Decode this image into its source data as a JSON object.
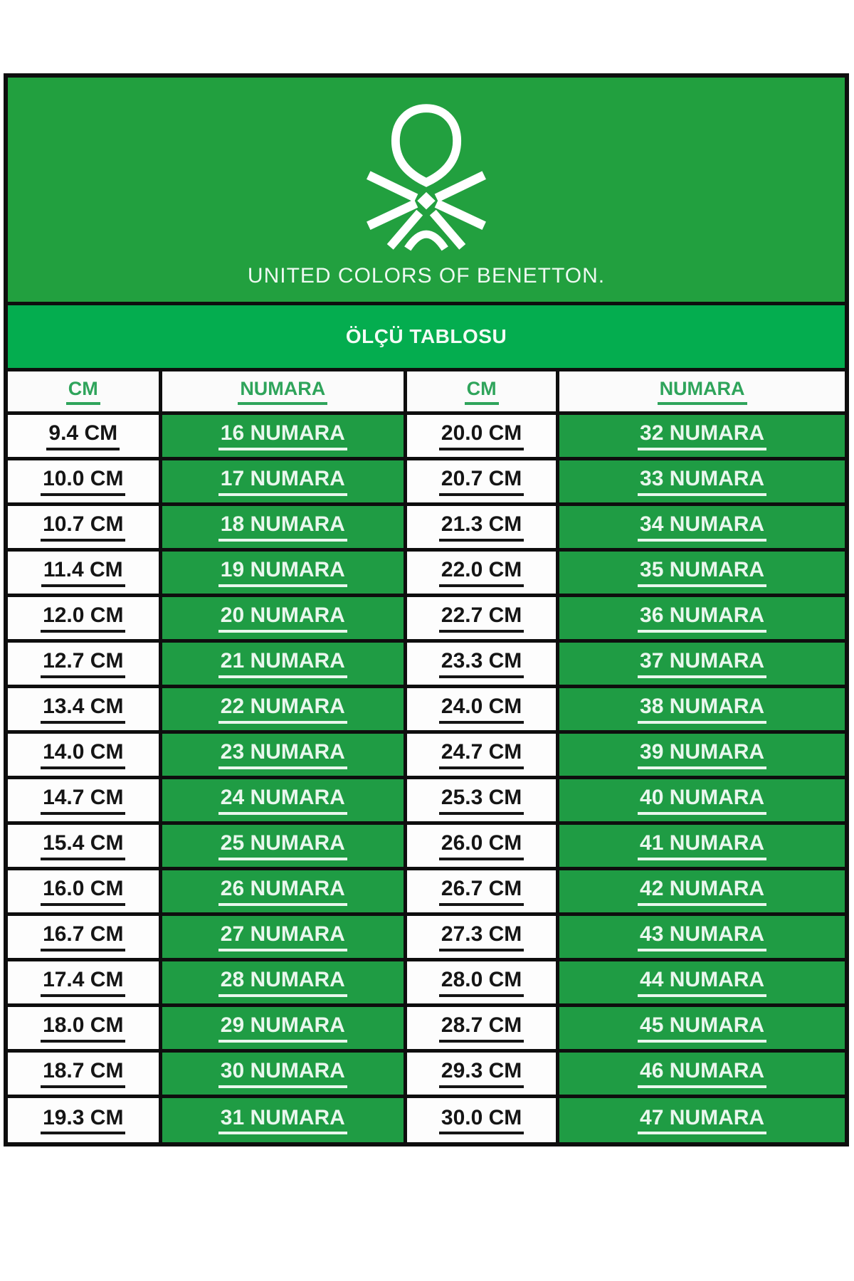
{
  "brand": {
    "logo_icon": "benetton-knot-logo",
    "wordmark": "UNITED COLORS OF BENETTON."
  },
  "title_bar": {
    "title": "ÖLÇÜ TABLOSU"
  },
  "table": {
    "headers": [
      "CM",
      "NUMARA",
      "CM",
      "NUMARA"
    ],
    "rows": [
      [
        "9.4 CM",
        "16 NUMARA",
        "20.0 CM",
        "32 NUMARA"
      ],
      [
        "10.0 CM",
        "17 NUMARA",
        "20.7 CM",
        "33 NUMARA"
      ],
      [
        "10.7 CM",
        "18 NUMARA",
        "21.3 CM",
        "34 NUMARA"
      ],
      [
        "11.4 CM",
        "19 NUMARA",
        "22.0 CM",
        "35 NUMARA"
      ],
      [
        "12.0 CM",
        "20 NUMARA",
        "22.7 CM",
        "36 NUMARA"
      ],
      [
        "12.7 CM",
        "21 NUMARA",
        "23.3 CM",
        "37 NUMARA"
      ],
      [
        "13.4 CM",
        "22 NUMARA",
        "24.0 CM",
        "38 NUMARA"
      ],
      [
        "14.0 CM",
        "23 NUMARA",
        "24.7 CM",
        "39 NUMARA"
      ],
      [
        "14.7 CM",
        "24 NUMARA",
        "25.3 CM",
        "40 NUMARA"
      ],
      [
        "15.4 CM",
        "25 NUMARA",
        "26.0 CM",
        "41 NUMARA"
      ],
      [
        "16.0 CM",
        "26 NUMARA",
        "26.7 CM",
        "42 NUMARA"
      ],
      [
        "16.7 CM",
        "27 NUMARA",
        "27.3 CM",
        "43 NUMARA"
      ],
      [
        "17.4 CM",
        "28 NUMARA",
        "28.0 CM",
        "44 NUMARA"
      ],
      [
        "18.0 CM",
        "29 NUMARA",
        "28.7 CM",
        "45 NUMARA"
      ],
      [
        "18.7 CM",
        "30 NUMARA",
        "29.3 CM",
        "46 NUMARA"
      ],
      [
        "19.3 CM",
        "31 NUMARA",
        "30.0 CM",
        "47 NUMARA"
      ]
    ]
  },
  "chart_data": {
    "type": "table",
    "title": "ÖLÇÜ TABLOSU",
    "columns": [
      "CM",
      "NUMARA",
      "CM",
      "NUMARA"
    ],
    "cm_values": [
      9.4,
      10.0,
      10.7,
      11.4,
      12.0,
      12.7,
      13.4,
      14.0,
      14.7,
      15.4,
      16.0,
      16.7,
      17.4,
      18.0,
      18.7,
      19.3,
      20.0,
      20.7,
      21.3,
      22.0,
      22.7,
      23.3,
      24.0,
      24.7,
      25.3,
      26.0,
      26.7,
      27.3,
      28.0,
      28.7,
      29.3,
      30.0
    ],
    "numara_values": [
      16,
      17,
      18,
      19,
      20,
      21,
      22,
      23,
      24,
      25,
      26,
      27,
      28,
      29,
      30,
      31,
      32,
      33,
      34,
      35,
      36,
      37,
      38,
      39,
      40,
      41,
      42,
      43,
      44,
      45,
      46,
      47
    ]
  },
  "colors": {
    "panel_green": "#22A03F",
    "title_green": "#04AD4F",
    "cell_green": "#1F9C44",
    "header_green": "#2FA45B",
    "light_green_text": "#E9F7ED",
    "border_black": "#0E0E0E",
    "cm_text": "#151515",
    "white_cell": "#FDFDFD"
  }
}
